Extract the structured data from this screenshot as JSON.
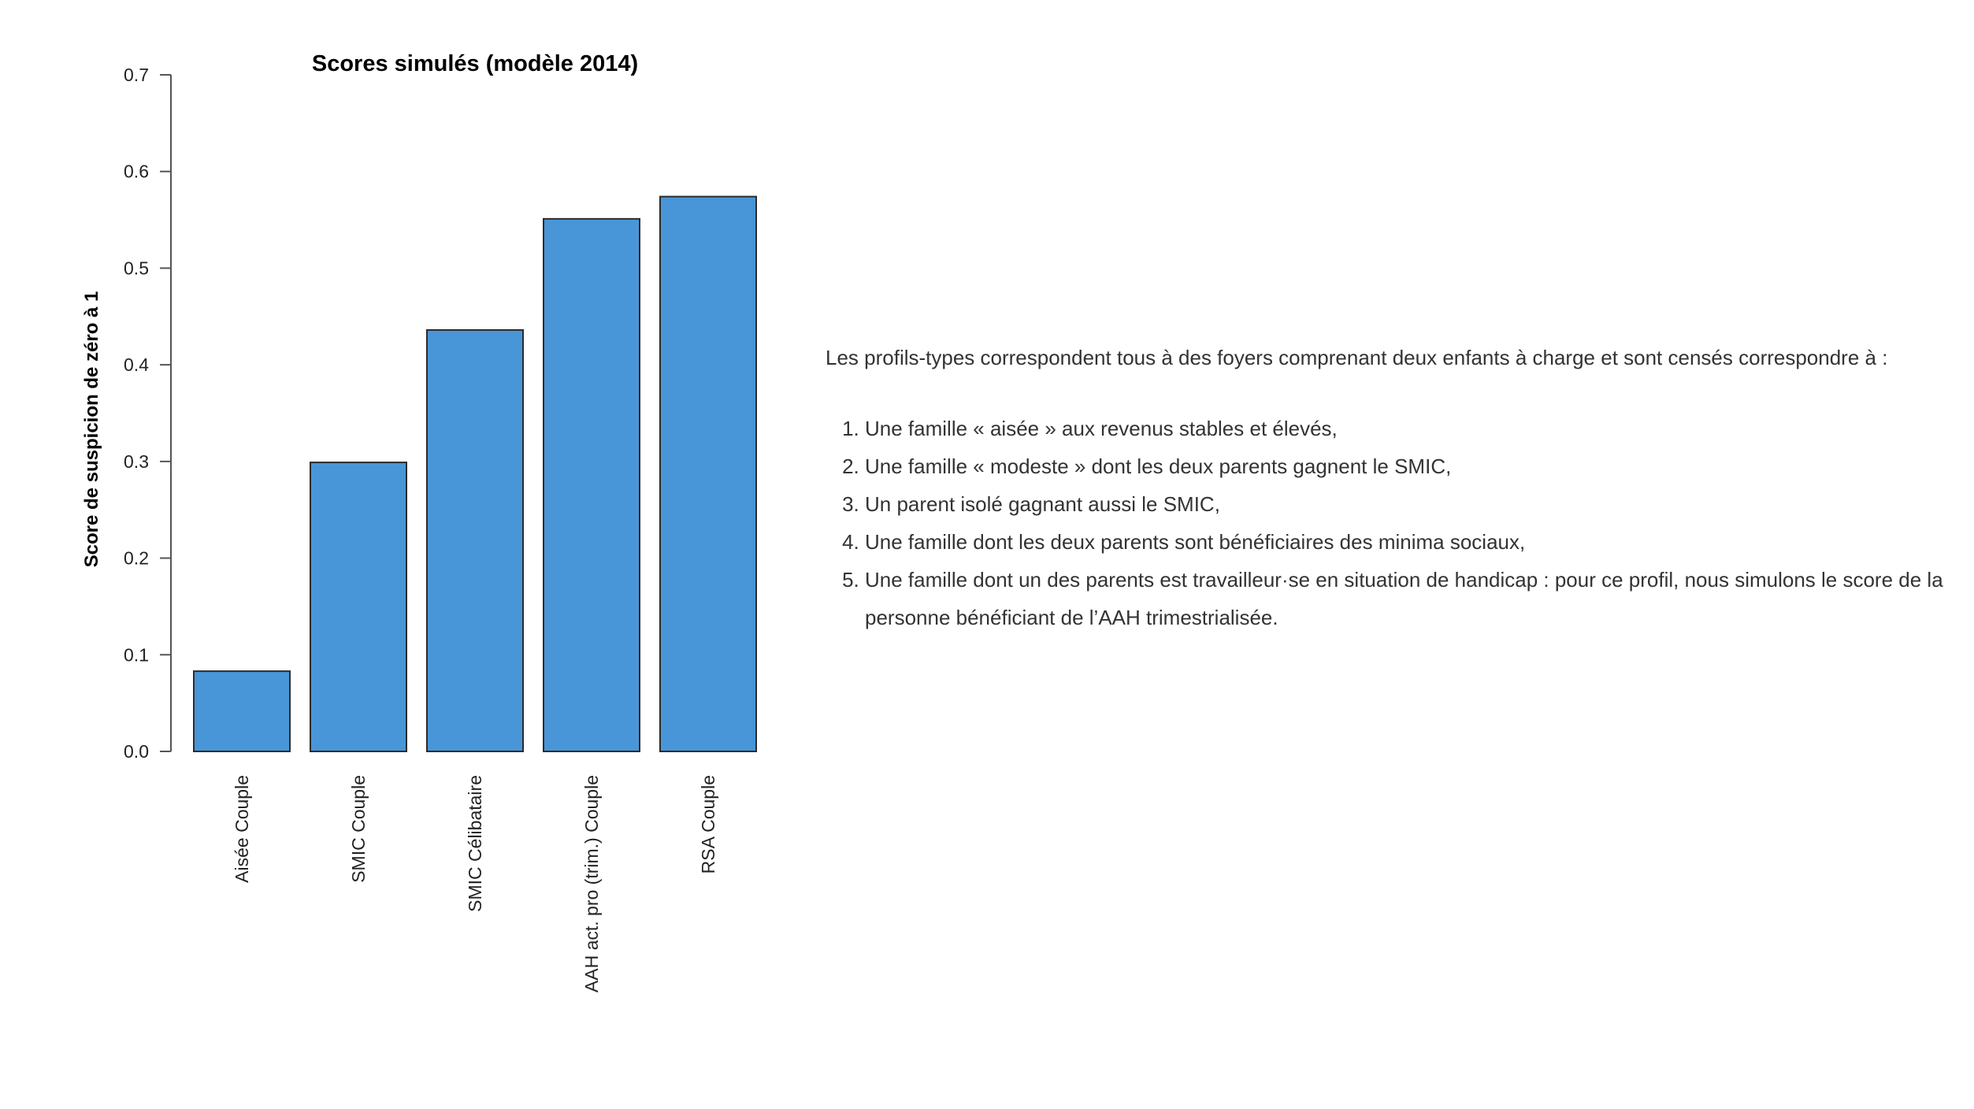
{
  "chart_data": {
    "type": "bar",
    "title": "Scores simulés (modèle 2014)",
    "xlabel": "",
    "ylabel": "Score de suspicion de zéro à 1",
    "categories": [
      "Aisée Couple",
      "SMIC Couple",
      "SMIC Célibataire",
      "AAH act. pro (trim.) Couple",
      "RSA Couple"
    ],
    "values": [
      0.083,
      0.299,
      0.436,
      0.551,
      0.574
    ],
    "ylim": [
      0,
      0.7
    ],
    "yticks": [
      "0.0",
      "0.1",
      "0.2",
      "0.3",
      "0.4",
      "0.5",
      "0.6",
      "0.7"
    ],
    "bar_color": "#4896d8",
    "bar_edge_color": "#2b2b2b",
    "grid": false,
    "legend": "none"
  },
  "text": {
    "intro": "Les profils-types correspondent tous à des foyers comprenant deux enfants à charge et sont censés correspondre à :",
    "items": [
      "Une famille « aisée » aux revenus stables et élevés,",
      "Une famille « modeste » dont les deux parents gagnent le SMIC,",
      "Un parent isolé gagnant aussi le SMIC,",
      "Une famille dont les deux parents sont bénéficiaires des minima sociaux,",
      "Une famille dont un des parents est travailleur·se en situation de handicap : pour ce profil, nous simulons le score de la personne bénéficiant de l’AAH trimestrialisée."
    ]
  }
}
